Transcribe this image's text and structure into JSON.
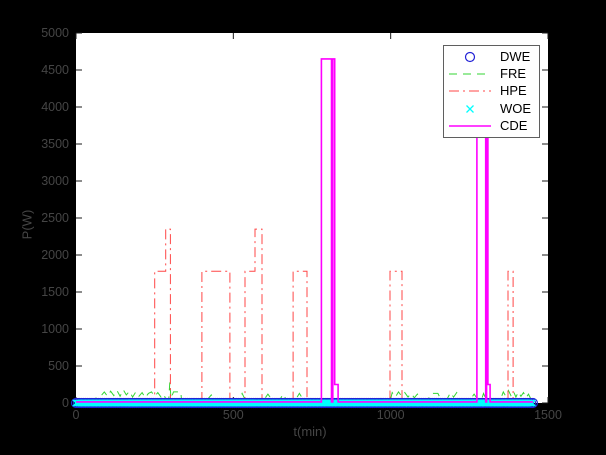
{
  "figure": {
    "background": "#000000",
    "plot_background": "#ffffff",
    "label_color": "#454545",
    "tick_color": "#1a1a1a"
  },
  "chart_data": {
    "type": "line",
    "title": "",
    "xlabel": "t(min)",
    "ylabel": "P(W)",
    "xlim": [
      0,
      1500
    ],
    "ylim": [
      0,
      5000
    ],
    "xticks": [
      0,
      500,
      1000,
      1500
    ],
    "yticks": [
      0,
      500,
      1000,
      1500,
      2000,
      2500,
      3000,
      3500,
      4000,
      4500,
      5000
    ],
    "grid": false,
    "legend_position": "upper right",
    "legend": [
      "DWE",
      "FRE",
      "HPE",
      "WOE",
      "CDE"
    ],
    "series": [
      {
        "name": "DWE",
        "color": "#2222d6",
        "line": "none",
        "marker": "circle",
        "marker_size": 4.5,
        "band": {
          "t0": 0,
          "t1": 1452,
          "value": 0,
          "step": 6
        }
      },
      {
        "name": "FRE",
        "color": "#33d633",
        "line": "dashed",
        "width": 1,
        "points": [
          [
            40,
            60
          ],
          [
            60,
            60
          ],
          [
            80,
            100
          ],
          [
            90,
            150
          ],
          [
            100,
            90
          ],
          [
            110,
            160
          ],
          [
            120,
            100
          ],
          [
            130,
            170
          ],
          [
            140,
            90
          ],
          [
            150,
            180
          ],
          [
            160,
            110
          ],
          [
            170,
            160
          ],
          [
            180,
            80
          ],
          [
            190,
            150
          ],
          [
            200,
            90
          ],
          [
            210,
            140
          ],
          [
            220,
            70
          ],
          [
            230,
            130
          ],
          [
            240,
            150
          ],
          [
            250,
            90
          ],
          [
            260,
            140
          ],
          [
            270,
            80
          ],
          [
            278,
            120
          ],
          [
            285,
            60
          ],
          [
            295,
            60
          ],
          [
            298,
            280
          ],
          [
            302,
            60
          ],
          [
            310,
            150
          ],
          [
            333,
            150
          ],
          [
            335,
            60
          ],
          [
            420,
            60
          ],
          [
            430,
            110
          ],
          [
            440,
            60
          ],
          [
            520,
            60
          ],
          [
            528,
            130
          ],
          [
            536,
            60
          ],
          [
            600,
            60
          ],
          [
            610,
            120
          ],
          [
            620,
            60
          ],
          [
            650,
            60
          ],
          [
            658,
            120
          ],
          [
            666,
            60
          ],
          [
            700,
            60
          ],
          [
            710,
            130
          ],
          [
            720,
            60
          ],
          [
            760,
            60
          ],
          [
            900,
            60
          ],
          [
            980,
            60
          ],
          [
            1000,
            60
          ],
          [
            1005,
            140
          ],
          [
            1015,
            80
          ],
          [
            1025,
            150
          ],
          [
            1035,
            90
          ],
          [
            1045,
            140
          ],
          [
            1055,
            80
          ],
          [
            1065,
            130
          ],
          [
            1075,
            70
          ],
          [
            1085,
            120
          ],
          [
            1095,
            60
          ],
          [
            1120,
            60
          ],
          [
            1130,
            130
          ],
          [
            1150,
            130
          ],
          [
            1158,
            60
          ],
          [
            1180,
            60
          ],
          [
            1190,
            140
          ],
          [
            1200,
            80
          ],
          [
            1210,
            140
          ],
          [
            1220,
            60
          ],
          [
            1255,
            60
          ],
          [
            1265,
            120
          ],
          [
            1275,
            60
          ],
          [
            1290,
            60
          ],
          [
            1295,
            130
          ],
          [
            1302,
            60
          ],
          [
            1350,
            60
          ],
          [
            1358,
            150
          ],
          [
            1366,
            90
          ],
          [
            1374,
            170
          ],
          [
            1382,
            100
          ],
          [
            1390,
            160
          ],
          [
            1398,
            80
          ],
          [
            1406,
            150
          ],
          [
            1414,
            90
          ],
          [
            1422,
            140
          ],
          [
            1430,
            70
          ],
          [
            1438,
            120
          ],
          [
            1445,
            60
          ]
        ]
      },
      {
        "name": "HPE",
        "color": "#ff4747",
        "line": "dashdot",
        "width": 1,
        "points": [
          [
            40,
            10
          ],
          [
            250,
            10
          ],
          [
            250,
            1780
          ],
          [
            285,
            1780
          ],
          [
            285,
            2350
          ],
          [
            300,
            2350
          ],
          [
            300,
            10
          ],
          [
            400,
            10
          ],
          [
            400,
            1780
          ],
          [
            489,
            1780
          ],
          [
            489,
            10
          ],
          [
            537,
            10
          ],
          [
            537,
            1780
          ],
          [
            569,
            1780
          ],
          [
            569,
            2350
          ],
          [
            591,
            2350
          ],
          [
            591,
            10
          ],
          [
            690,
            10
          ],
          [
            690,
            1780
          ],
          [
            734,
            1780
          ],
          [
            734,
            10
          ],
          [
            998,
            10
          ],
          [
            998,
            1780
          ],
          [
            1036,
            1780
          ],
          [
            1036,
            10
          ],
          [
            1373,
            10
          ],
          [
            1373,
            1780
          ],
          [
            1389,
            1780
          ],
          [
            1389,
            10
          ],
          [
            1450,
            10
          ]
        ]
      },
      {
        "name": "WOE",
        "color": "#00ffff",
        "line": "none",
        "marker": "x",
        "marker_size": 3.2,
        "band": {
          "t0": 0,
          "t1": 1452,
          "value": 0,
          "step": 5
        }
      },
      {
        "name": "CDE",
        "color": "#ff00ff",
        "line": "solid",
        "width": 1.6,
        "points": [
          [
            0,
            15
          ],
          [
            780,
            15
          ],
          [
            780,
            4650
          ],
          [
            812,
            4650
          ],
          [
            812,
            15
          ],
          [
            816,
            15
          ],
          [
            816,
            4650
          ],
          [
            822,
            4650
          ],
          [
            822,
            250
          ],
          [
            833,
            250
          ],
          [
            833,
            15
          ],
          [
            1274,
            15
          ],
          [
            1274,
            4650
          ],
          [
            1302,
            4650
          ],
          [
            1302,
            15
          ],
          [
            1305,
            15
          ],
          [
            1305,
            4650
          ],
          [
            1309,
            4650
          ],
          [
            1309,
            250
          ],
          [
            1316,
            250
          ],
          [
            1316,
            15
          ],
          [
            1452,
            15
          ]
        ]
      }
    ],
    "draw_order": [
      "FRE",
      "HPE",
      "DWE",
      "WOE",
      "CDE"
    ]
  }
}
